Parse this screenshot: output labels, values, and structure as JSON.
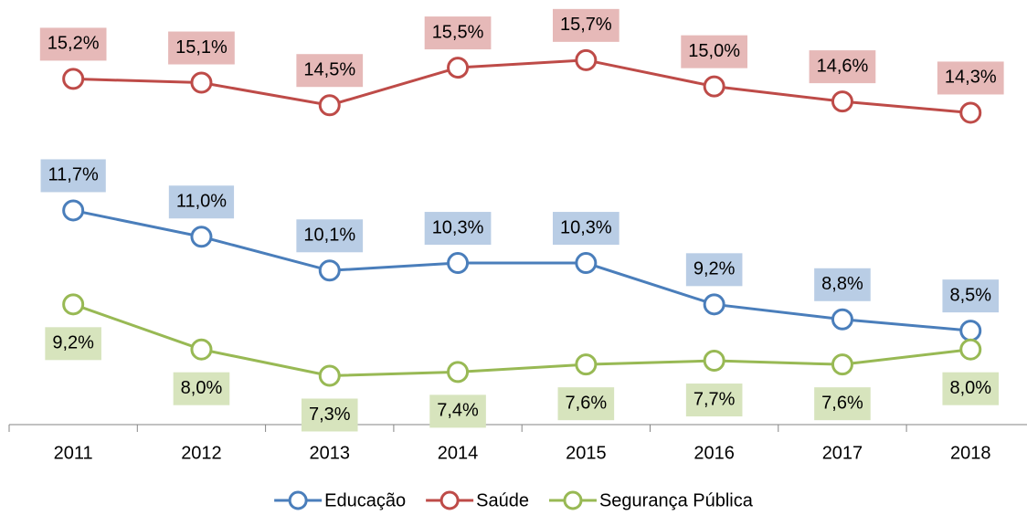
{
  "chart_data": {
    "type": "line",
    "categories": [
      "2011",
      "2012",
      "2013",
      "2014",
      "2015",
      "2016",
      "2017",
      "2018"
    ],
    "series": [
      {
        "name": "Educação",
        "color": "#4a7ebb",
        "label_color": "#b9cde5",
        "values": [
          11.7,
          11.0,
          10.1,
          10.3,
          10.3,
          9.2,
          8.8,
          8.5
        ],
        "value_labels": [
          "11,7%",
          "11,0%",
          "10,1%",
          "10,3%",
          "10,3%",
          "9,2%",
          "8,8%",
          "8,5%"
        ]
      },
      {
        "name": "Saúde",
        "color": "#be4b48",
        "label_color": "#e6b9b8",
        "values": [
          15.2,
          15.1,
          14.5,
          15.5,
          15.7,
          15.0,
          14.6,
          14.3
        ],
        "value_labels": [
          "15,2%",
          "15,1%",
          "14,5%",
          "15,5%",
          "15,7%",
          "15,0%",
          "14,6%",
          "14,3%"
        ]
      },
      {
        "name": "Segurança Pública",
        "color": "#98b954",
        "label_color": "#d7e4bd",
        "values": [
          9.2,
          8.0,
          7.3,
          7.4,
          7.6,
          7.7,
          7.6,
          8.0
        ],
        "value_labels": [
          "9,2%",
          "8,0%",
          "7,3%",
          "7,4%",
          "7,6%",
          "7,7%",
          "7,6%",
          "8,0%"
        ]
      }
    ],
    "ylim": [
      6,
      17.3
    ],
    "legend": "bottom"
  }
}
